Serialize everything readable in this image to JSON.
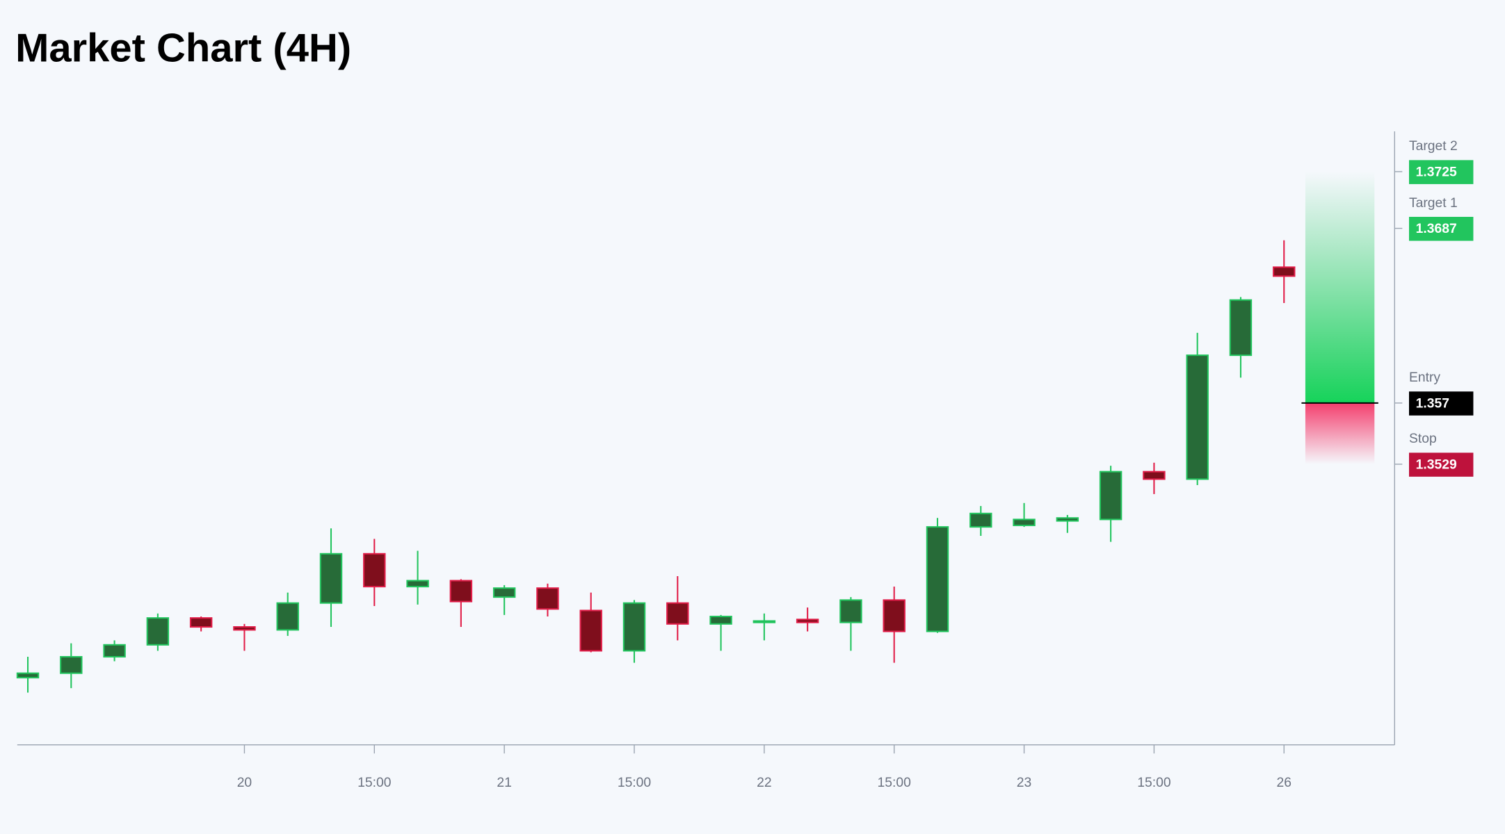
{
  "chart_data": {
    "type": "candlestick",
    "title": "Market Chart (4H)",
    "categories": [
      null,
      null,
      null,
      null,
      null,
      "20",
      null,
      null,
      "15:00",
      null,
      null,
      "21",
      null,
      null,
      "15:00",
      null,
      null,
      "22",
      null,
      null,
      "15:00",
      null,
      null,
      "23",
      null,
      null,
      "15:00",
      null,
      null,
      "26"
    ],
    "open": [
      1.3386,
      1.3389,
      1.34,
      1.3408,
      1.3426,
      1.342,
      1.3418,
      1.3436,
      1.3469,
      1.3447,
      1.3451,
      1.344,
      1.3446,
      1.3431,
      1.3404,
      1.3436,
      1.3422,
      1.3423,
      1.3425,
      1.3423,
      1.3438,
      1.3417,
      1.3487,
      1.3488,
      1.3491,
      1.3492,
      1.3524,
      1.3519,
      1.3602,
      1.3661
    ],
    "high": [
      1.34,
      1.3409,
      1.3411,
      1.3429,
      1.3427,
      1.3422,
      1.3443,
      1.3486,
      1.3479,
      1.3471,
      1.3452,
      1.3448,
      1.3449,
      1.3443,
      1.3438,
      1.3454,
      1.3428,
      1.3429,
      1.3433,
      1.344,
      1.3447,
      1.3493,
      1.3501,
      1.3503,
      1.3495,
      1.3528,
      1.353,
      1.3617,
      1.3641,
      1.3679
    ],
    "low": [
      1.3376,
      1.3379,
      1.3397,
      1.3404,
      1.3417,
      1.3404,
      1.3414,
      1.342,
      1.3434,
      1.3435,
      1.342,
      1.3428,
      1.3427,
      1.3403,
      1.3396,
      1.3411,
      1.3404,
      1.3411,
      1.3417,
      1.3404,
      1.3396,
      1.3416,
      1.3481,
      1.3487,
      1.3483,
      1.3477,
      1.3509,
      1.3515,
      1.3587,
      1.3637
    ],
    "close": [
      1.3389,
      1.34,
      1.3408,
      1.3426,
      1.342,
      1.3418,
      1.3436,
      1.3469,
      1.3447,
      1.3451,
      1.3437,
      1.3446,
      1.3432,
      1.3404,
      1.3436,
      1.3422,
      1.3427,
      1.3424,
      1.3423,
      1.3438,
      1.3417,
      1.3487,
      1.3496,
      1.3492,
      1.3493,
      1.3524,
      1.3519,
      1.3602,
      1.3639,
      1.3655
    ],
    "up_color": "#22c55e",
    "up_fill": "#276b38",
    "down_color": "#e11d48",
    "down_fill": "#7f0e1c",
    "ylim": [
      1.3341,
      1.3752
    ],
    "targets": [
      {
        "label": "Target 2",
        "value": 1.3725
      },
      {
        "label": "Target 1",
        "value": 1.3687
      }
    ],
    "entry": {
      "label": "Entry",
      "value": 1.357
    },
    "stop": {
      "label": "Stop",
      "value": 1.3529
    },
    "target_color": "#22c55e",
    "entry_color": "#000000",
    "stop_color": "#be123c"
  }
}
